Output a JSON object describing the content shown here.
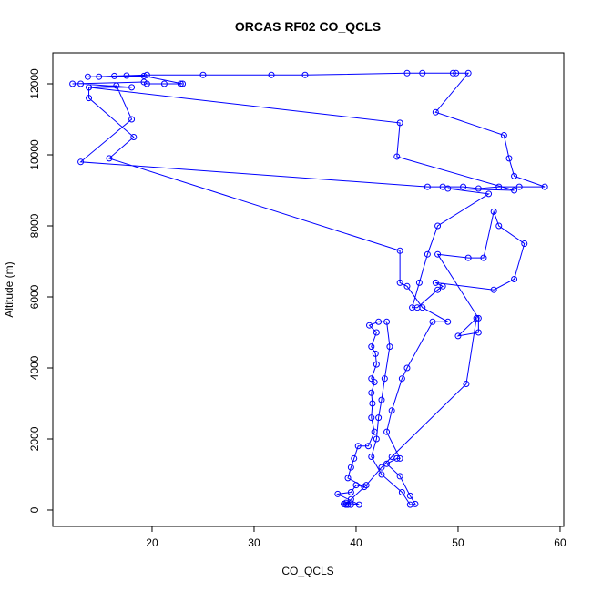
{
  "chart_data": {
    "type": "line",
    "title": "ORCAS RF02 CO_QCLS",
    "x_label": "CO_QCLS",
    "y_label": "Altitude (m)",
    "color": "blue",
    "markers": true,
    "xlim": [
      10.27,
      60.36
    ],
    "ylim": [
      -462,
      12872
    ],
    "xticks": [
      20,
      30,
      40,
      50,
      60
    ],
    "yticks": [
      0,
      2000,
      4000,
      6000,
      8000,
      10000,
      12000
    ],
    "x": [
      39.2,
      39.5,
      38.8,
      39.0,
      40.3,
      38.2,
      39.5,
      40.0,
      40.8,
      39.2,
      39.5,
      39.8,
      40.2,
      41.2,
      41.8,
      41.5,
      41.6,
      41.5,
      41.8,
      41.5,
      42.0,
      41.9,
      41.5,
      42.0,
      41.3,
      42.2,
      43.0,
      43.3,
      42.8,
      42.5,
      42.2,
      42.0,
      41.5,
      42.5,
      44.5,
      45.3,
      45.8,
      45.3,
      44.3,
      43.0,
      44.0,
      44.3,
      43.0,
      43.5,
      44.5,
      45.0,
      47.5,
      49.0,
      46.5,
      45.0,
      44.3,
      44.3,
      15.8,
      18.2,
      13.8,
      13.8,
      16.5,
      18.0,
      13.0,
      47.0,
      48.5,
      50.5,
      52.0,
      54.0,
      56.0,
      58.5,
      55.5,
      55.0,
      54.5,
      47.8,
      51.0,
      49.8,
      49.5,
      46.5,
      45.0,
      35.0,
      31.7,
      25.0,
      19.5,
      17.5,
      16.3,
      14.8,
      13.7,
      19.2,
      23.0,
      22.8,
      21.2,
      19.5,
      19.2,
      12.2,
      13.0,
      18.0,
      13.8,
      44.3,
      44.0,
      55.5,
      49.0,
      53.0,
      48.0,
      47.0,
      46.2,
      45.5,
      46.0,
      48.0,
      48.5,
      47.8,
      53.5,
      55.5,
      56.5,
      54.0,
      53.5,
      52.5,
      51.0,
      48.0,
      52.0,
      52.0,
      50.0,
      51.8,
      50.8,
      43.5,
      42.5,
      41.0,
      39.5,
      39.0
    ],
    "values": [
      150,
      150,
      170,
      200,
      150,
      450,
      500,
      700,
      650,
      900,
      1200,
      1450,
      1800,
      1800,
      2200,
      2600,
      3000,
      3300,
      3600,
      3700,
      4100,
      4400,
      4600,
      5000,
      5200,
      5300,
      5300,
      4600,
      3700,
      3100,
      2600,
      2000,
      1500,
      1000,
      500,
      150,
      170,
      400,
      950,
      1300,
      1450,
      1450,
      2200,
      2800,
      3700,
      4000,
      5300,
      5300,
      5700,
      6300,
      6400,
      7300,
      9900,
      10500,
      11600,
      11900,
      11950,
      11000,
      9800,
      9100,
      9100,
      9100,
      9050,
      9100,
      9100,
      9100,
      9400,
      9900,
      10550,
      11200,
      12300,
      12300,
      12300,
      12300,
      12300,
      12250,
      12250,
      12250,
      12250,
      12230,
      12220,
      12200,
      12200,
      12220,
      12000,
      12000,
      12000,
      12000,
      12050,
      12000,
      12000,
      11900,
      11900,
      10900,
      9950,
      9000,
      9050,
      8900,
      8000,
      7200,
      6400,
      5700,
      5700,
      6200,
      6300,
      6400,
      6200,
      6500,
      7500,
      8000,
      8400,
      7100,
      7100,
      7200,
      5400,
      5000,
      4900,
      5400,
      3550,
      1500,
      1200,
      700,
      300,
      150
    ]
  }
}
